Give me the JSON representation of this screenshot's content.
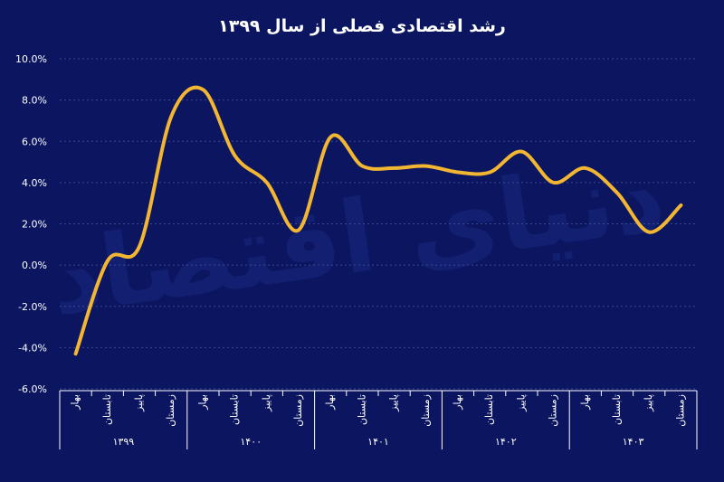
{
  "colors": {
    "background": "#0b1560",
    "line": "#f2b632",
    "text": "#ffffff",
    "grid": "#3a4a8f",
    "watermark": "#1a2a80"
  },
  "watermark": "دنیای اقتصاد",
  "chart_data": {
    "type": "line",
    "title": "رشد اقتصادی فصلی از سال ۱۳۹۹",
    "xlabel": "",
    "ylabel": "",
    "ylim": [
      -6.0,
      10.0
    ],
    "y_ticks": [
      {
        "value": 10,
        "label": "10.0%"
      },
      {
        "value": 8,
        "label": "8.0%"
      },
      {
        "value": 6,
        "label": "6.0%"
      },
      {
        "value": 4,
        "label": "4.0%"
      },
      {
        "value": 2,
        "label": "2.0%"
      },
      {
        "value": 0,
        "label": "0.0%"
      },
      {
        "value": -2,
        "label": "-2.0%"
      },
      {
        "value": -4,
        "label": "-4.0%"
      },
      {
        "value": -6,
        "label": "-6.0%"
      }
    ],
    "categories": [
      "بهار",
      "تابستان",
      "پاییز",
      "زمستان",
      "بهار",
      "تابستان",
      "پاییز",
      "زمستان",
      "بهار",
      "تابستان",
      "پاییز",
      "زمستان",
      "بهار",
      "تابستان",
      "پاییز",
      "زمستان",
      "بهار",
      "تابستان",
      "پاییز",
      "زمستان"
    ],
    "years": [
      "۱۳۹۹",
      "۱۴۰۰",
      "۱۴۰۱",
      "۱۴۰۲",
      "۱۴۰۳"
    ],
    "grid": true,
    "legend": "none",
    "series": [
      {
        "values": [
          -4.3,
          0.2,
          0.9,
          7.2,
          8.5,
          5.3,
          4.0,
          1.7,
          6.2,
          4.8,
          4.7,
          4.8,
          4.5,
          4.5,
          5.5,
          4.0,
          4.7,
          3.5,
          1.6,
          2.9
        ]
      }
    ]
  }
}
